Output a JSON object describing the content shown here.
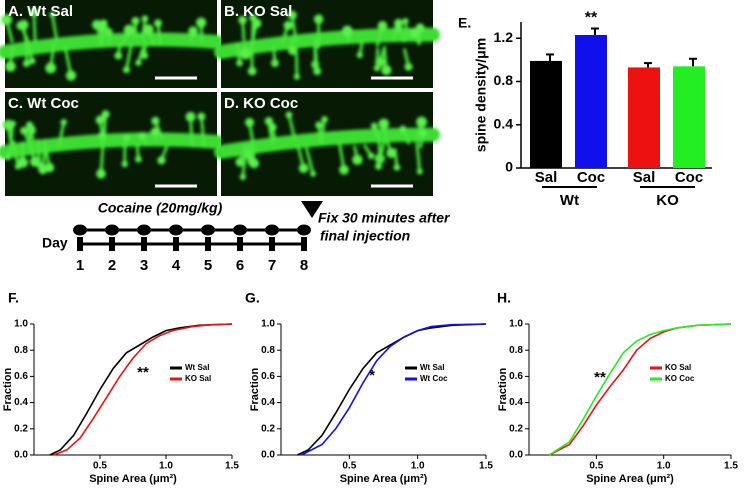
{
  "images": [
    {
      "label": "A. Wt Sal"
    },
    {
      "label": "B. KO Sal"
    },
    {
      "label": "C. Wt Coc"
    },
    {
      "label": "D. KO Coc"
    }
  ],
  "timeline": {
    "drug": "Cocaine (20mg/kg)",
    "day_label": "Day",
    "days": [
      "1",
      "2",
      "3",
      "4",
      "5",
      "6",
      "7",
      "8"
    ],
    "note": [
      "Fix 30 minutes after",
      "final injection"
    ]
  },
  "chart_data": [
    {
      "type": "bar",
      "panel_label": "E.",
      "ylabel": "spine density/μm",
      "categories": [
        "Sal",
        "Coc",
        "Sal",
        "Coc"
      ],
      "groups": [
        "Wt",
        "KO"
      ],
      "values": [
        0.99,
        1.23,
        0.93,
        0.94
      ],
      "errors": [
        0.06,
        0.06,
        0.04,
        0.07
      ],
      "colors": [
        "#000000",
        "#1010ee",
        "#ee1111",
        "#22ee22"
      ],
      "annotation": "**",
      "ylim": [
        0,
        1.35
      ],
      "yticks": [
        0,
        0.4,
        0.8,
        1.2
      ]
    },
    {
      "type": "line",
      "panel_label": "F.",
      "xlabel": "Spine Area (μm²)",
      "ylabel": "Fraction",
      "annotation": "**",
      "xlim": [
        0,
        1.5
      ],
      "ylim": [
        0,
        1
      ],
      "xticks": [
        0.5,
        {
          "value": 1,
          "label": "1.0"
        },
        1.5
      ],
      "yticks": [
        {
          "value": 0,
          "label": "0.0"
        },
        0.2,
        0.4,
        0.6,
        0.8,
        {
          "value": 1,
          "label": "1.0"
        }
      ],
      "series": [
        {
          "name": "Wt Sal",
          "color": "#000000",
          "x": [
            0.12,
            0.2,
            0.3,
            0.4,
            0.5,
            0.6,
            0.7,
            0.8,
            0.9,
            1.0,
            1.1,
            1.25,
            1.5
          ],
          "values": [
            0,
            0.04,
            0.15,
            0.32,
            0.5,
            0.66,
            0.78,
            0.84,
            0.9,
            0.95,
            0.97,
            0.99,
            1.0
          ]
        },
        {
          "name": "KO Sal",
          "color": "#ee1111",
          "x": [
            0.15,
            0.25,
            0.35,
            0.45,
            0.55,
            0.65,
            0.75,
            0.85,
            0.95,
            1.05,
            1.2,
            1.35,
            1.5
          ],
          "values": [
            0,
            0.04,
            0.13,
            0.28,
            0.44,
            0.6,
            0.74,
            0.85,
            0.91,
            0.95,
            0.98,
            0.995,
            1.0
          ]
        }
      ]
    },
    {
      "type": "line",
      "panel_label": "G.",
      "xlabel": "Spine Area (μm²)",
      "ylabel": "Fraction",
      "annotation": "*",
      "xlim": [
        0,
        1.5
      ],
      "ylim": [
        0,
        1
      ],
      "xticks": [
        0.5,
        {
          "value": 1,
          "label": "1.0"
        },
        1.5
      ],
      "yticks": [
        {
          "value": 0,
          "label": "0.0"
        },
        0.2,
        0.4,
        0.6,
        0.8,
        {
          "value": 1,
          "label": "1.0"
        }
      ],
      "series": [
        {
          "name": "Wt Sal",
          "color": "#000000",
          "x": [
            0.12,
            0.2,
            0.3,
            0.4,
            0.5,
            0.6,
            0.7,
            0.8,
            0.9,
            1.0,
            1.1,
            1.25,
            1.5
          ],
          "values": [
            0,
            0.04,
            0.15,
            0.32,
            0.5,
            0.66,
            0.78,
            0.84,
            0.9,
            0.95,
            0.97,
            0.99,
            1.0
          ]
        },
        {
          "name": "Wt Coc",
          "color": "#1010ee",
          "x": [
            0.15,
            0.3,
            0.4,
            0.5,
            0.6,
            0.7,
            0.8,
            0.9,
            1.0,
            1.1,
            1.25,
            1.5
          ],
          "values": [
            0,
            0.08,
            0.2,
            0.36,
            0.55,
            0.72,
            0.83,
            0.9,
            0.95,
            0.98,
            0.995,
            1.0
          ]
        }
      ]
    },
    {
      "type": "line",
      "panel_label": "H.",
      "xlabel": "Spine Area (μm²)",
      "ylabel": "Fraction",
      "annotation": "**",
      "xlim": [
        0,
        1.5
      ],
      "ylim": [
        0,
        1
      ],
      "xticks": [
        0.5,
        {
          "value": 1,
          "label": "1.0"
        },
        1.5
      ],
      "yticks": [
        {
          "value": 0,
          "label": "0.0"
        },
        0.2,
        0.4,
        0.6,
        0.8,
        {
          "value": 1,
          "label": "1.0"
        }
      ],
      "series": [
        {
          "name": "KO Sal",
          "color": "#ee1111",
          "x": [
            0.15,
            0.3,
            0.4,
            0.5,
            0.6,
            0.7,
            0.8,
            0.9,
            1.0,
            1.1,
            1.25,
            1.5
          ],
          "values": [
            0,
            0.08,
            0.22,
            0.38,
            0.52,
            0.65,
            0.8,
            0.89,
            0.94,
            0.97,
            0.99,
            1.0
          ]
        },
        {
          "name": "KO Coc",
          "color": "#22ee22",
          "x": [
            0.15,
            0.3,
            0.4,
            0.5,
            0.6,
            0.7,
            0.8,
            0.9,
            1.0,
            1.1,
            1.25,
            1.5
          ],
          "values": [
            0,
            0.1,
            0.27,
            0.45,
            0.62,
            0.78,
            0.87,
            0.92,
            0.95,
            0.97,
            0.99,
            1.0
          ]
        }
      ]
    }
  ]
}
